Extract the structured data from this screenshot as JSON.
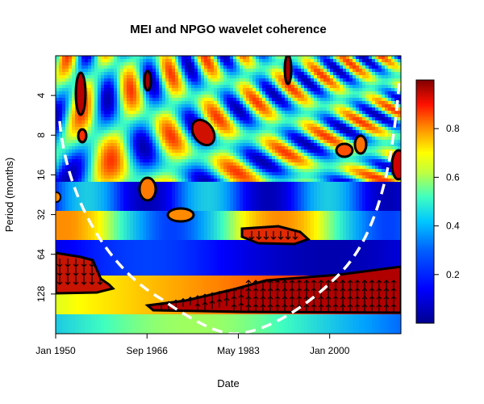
{
  "chart_data": {
    "type": "heatmap",
    "title": "MEI and NPGO wavelet coherence",
    "xlabel": "Date",
    "ylabel": "Period (months)",
    "x_ticks": [
      "Jan 1950",
      "Sep 1966",
      "May 1983",
      "Jan 2000"
    ],
    "x_tick_years": [
      1950,
      1966.67,
      1983.33,
      2000
    ],
    "xlim": [
      1950,
      2013
    ],
    "y_ticks": [
      4,
      8,
      16,
      32,
      64,
      128
    ],
    "y_scale": "log2",
    "ylim": [
      2,
      256
    ],
    "colorbar": {
      "ticks": [
        0.2,
        0.4,
        0.6,
        0.8
      ],
      "range": [
        0,
        1
      ],
      "colors": [
        "#00008f",
        "#0000ff",
        "#00a0ff",
        "#40ffbf",
        "#ffff00",
        "#ff8000",
        "#ff0000",
        "#800000"
      ]
    },
    "cone_of_influence": true,
    "significant_regions": [
      {
        "x_range": [
          1950,
          1958
        ],
        "period_range": [
          64,
          150
        ],
        "phase": "in-phase (arrows down)"
      },
      {
        "x_range": [
          1967,
          2013
        ],
        "period_range": [
          80,
          190
        ],
        "phase": "in-phase lagged (arrows up)"
      },
      {
        "x_range": [
          1984,
          1996
        ],
        "period_range": [
          34,
          52
        ],
        "phase": "arrows down"
      }
    ]
  }
}
